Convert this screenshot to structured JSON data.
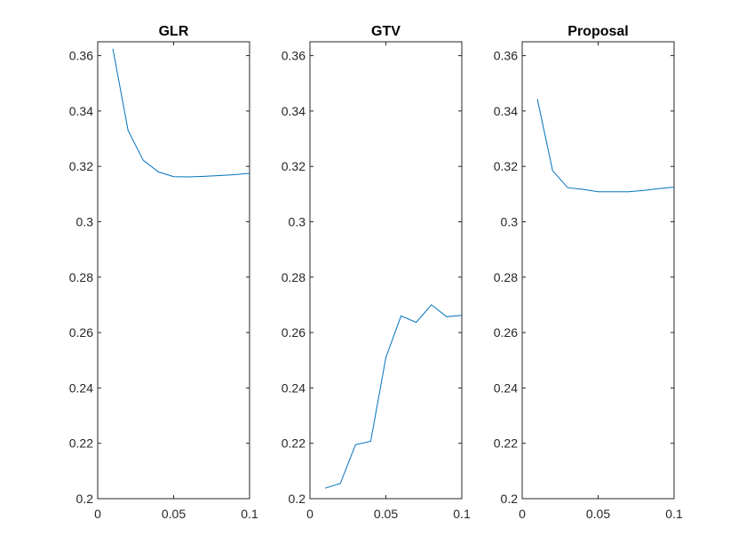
{
  "chart_data": [
    {
      "type": "line",
      "title": "GLR",
      "xlabel": "",
      "ylabel": "",
      "xlim": [
        0,
        0.1
      ],
      "ylim": [
        0.2,
        0.365
      ],
      "xticks": [
        "0",
        "0.05",
        "0.1"
      ],
      "yticks": [
        "0.2",
        "0.22",
        "0.24",
        "0.26",
        "0.28",
        "0.3",
        "0.32",
        "0.34",
        "0.36"
      ],
      "grid": false,
      "color": "#0072BD",
      "x": [
        0.01,
        0.02,
        0.03,
        0.04,
        0.05,
        0.06,
        0.07,
        0.08,
        0.09,
        0.1
      ],
      "y": [
        0.3625,
        0.333,
        0.3222,
        0.318,
        0.3163,
        0.3162,
        0.3164,
        0.3167,
        0.317,
        0.3175
      ]
    },
    {
      "type": "line",
      "title": "GTV",
      "xlabel": "",
      "ylabel": "",
      "xlim": [
        0,
        0.1
      ],
      "ylim": [
        0.2,
        0.365
      ],
      "xticks": [
        "0",
        "0.05",
        "0.1"
      ],
      "yticks": [
        "0.2",
        "0.22",
        "0.24",
        "0.26",
        "0.28",
        "0.3",
        "0.32",
        "0.34",
        "0.36"
      ],
      "grid": false,
      "color": "#0072BD",
      "x": [
        0.01,
        0.02,
        0.03,
        0.04,
        0.05,
        0.06,
        0.07,
        0.08,
        0.09,
        0.1
      ],
      "y": [
        0.2038,
        0.2055,
        0.2195,
        0.2207,
        0.251,
        0.266,
        0.2637,
        0.27,
        0.2657,
        0.2662
      ]
    },
    {
      "type": "line",
      "title": "Proposal",
      "xlabel": "",
      "ylabel": "",
      "xlim": [
        0,
        0.1
      ],
      "ylim": [
        0.2,
        0.365
      ],
      "xticks": [
        "0",
        "0.05",
        "0.1"
      ],
      "yticks": [
        "0.2",
        "0.22",
        "0.24",
        "0.26",
        "0.28",
        "0.3",
        "0.32",
        "0.34",
        "0.36"
      ],
      "grid": false,
      "color": "#0072BD",
      "x": [
        0.01,
        0.02,
        0.03,
        0.04,
        0.05,
        0.06,
        0.07,
        0.08,
        0.09,
        0.1
      ],
      "y": [
        0.3443,
        0.3185,
        0.3123,
        0.3117,
        0.3108,
        0.3108,
        0.3108,
        0.3113,
        0.312,
        0.3125
      ]
    }
  ]
}
